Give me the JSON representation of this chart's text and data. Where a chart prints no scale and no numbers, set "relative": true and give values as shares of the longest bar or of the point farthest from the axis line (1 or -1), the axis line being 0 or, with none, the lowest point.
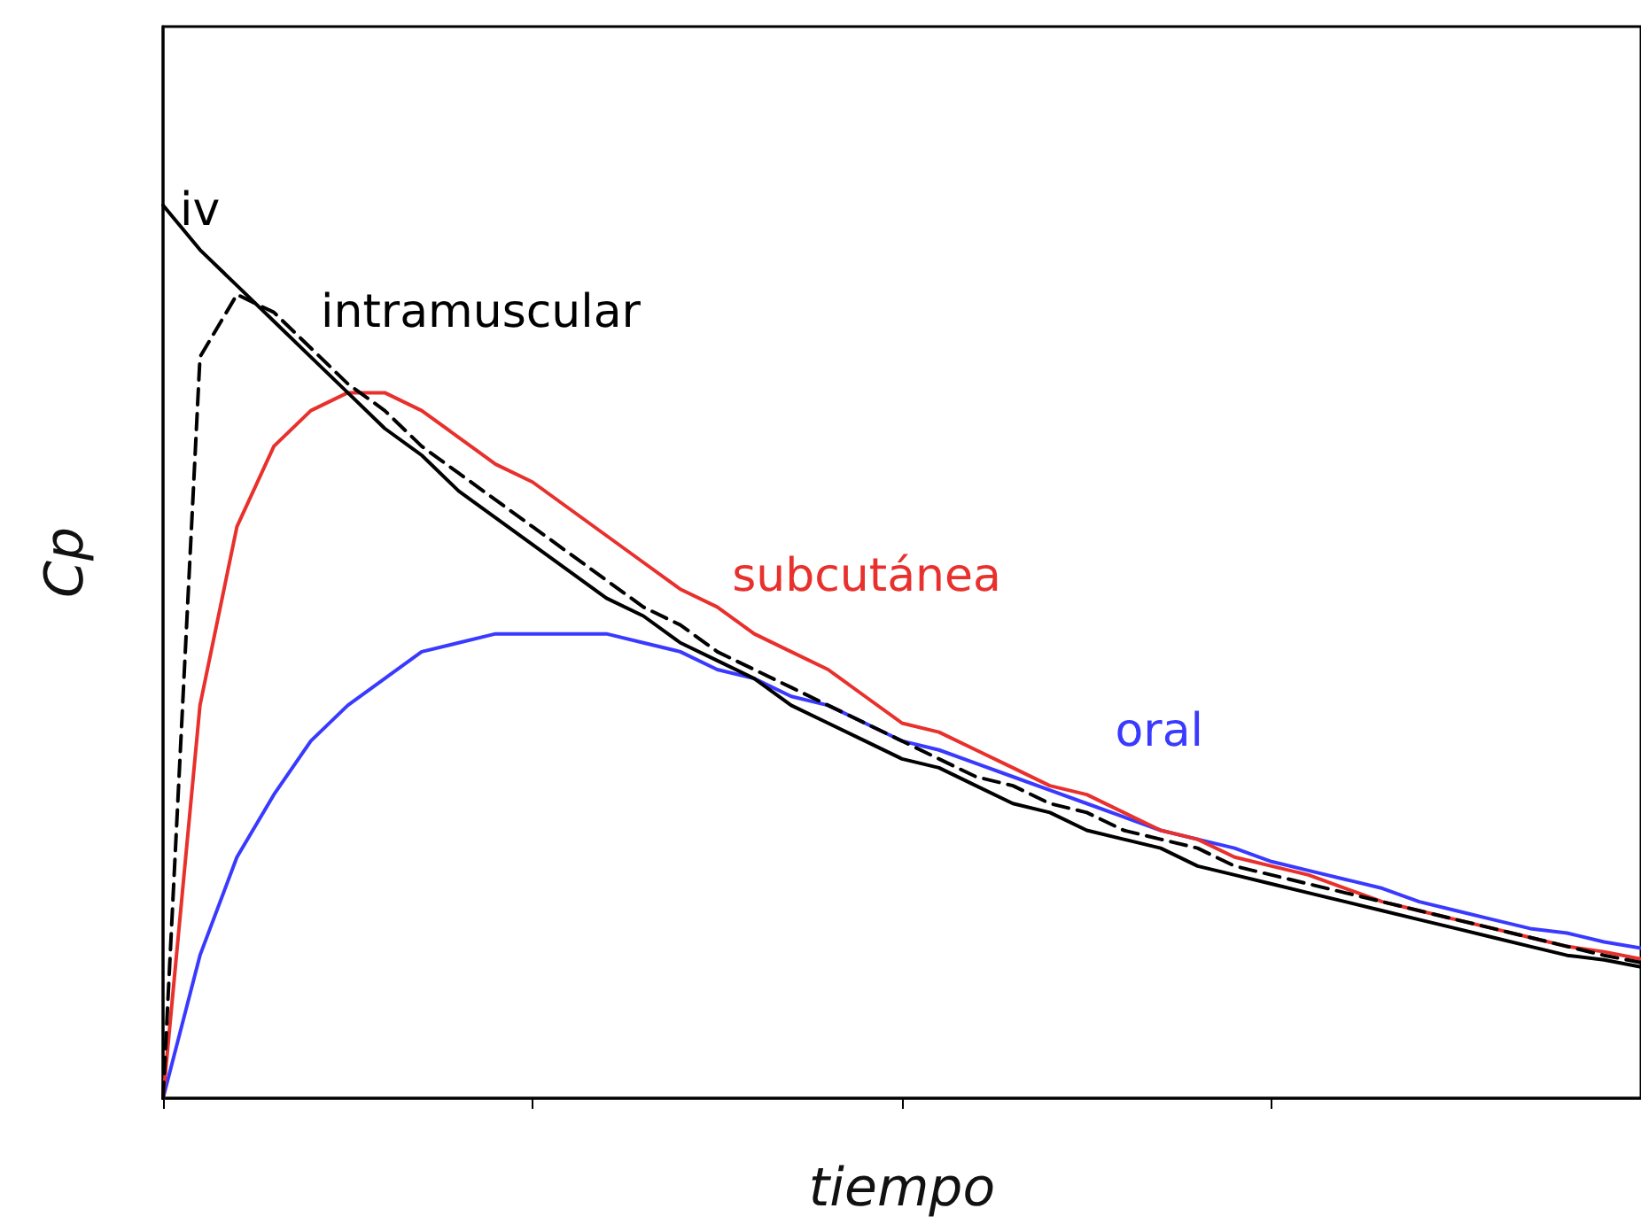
{
  "chart_data": {
    "type": "line",
    "relative": true,
    "xlabel": "tiempo",
    "ylabel": "Cp",
    "tick_labels": false,
    "grid": false,
    "legend": false,
    "marker": "none",
    "categories": [
      null,
      null,
      null,
      null,
      null,
      null,
      null,
      null,
      null,
      null,
      null,
      null,
      null,
      null,
      null,
      null,
      null,
      null,
      null,
      null,
      null,
      null,
      null,
      null,
      null,
      null,
      null,
      null,
      null,
      null,
      null,
      null,
      null,
      null,
      null,
      null,
      null,
      null,
      null,
      null,
      null
    ],
    "series": [
      {
        "name": "iv",
        "color": "#000000",
        "line_style": "solid",
        "values": [
          1.0,
          0.95,
          0.91,
          0.87,
          0.83,
          0.79,
          0.75,
          0.72,
          0.68,
          0.65,
          0.62,
          0.59,
          0.56,
          0.54,
          0.51,
          0.49,
          0.47,
          0.44,
          0.42,
          0.4,
          0.38,
          0.37,
          0.35,
          0.33,
          0.32,
          0.3,
          0.29,
          0.28,
          0.26,
          0.25,
          0.24,
          0.23,
          0.22,
          0.21,
          0.2,
          0.19,
          0.18,
          0.17,
          0.16,
          0.155,
          0.147
        ]
      },
      {
        "name": "intramuscular",
        "color": "#000000",
        "line_style": "dashed",
        "values": [
          0,
          0.83,
          0.9,
          0.88,
          0.84,
          0.8,
          0.77,
          0.73,
          0.7,
          0.67,
          0.64,
          0.61,
          0.58,
          0.55,
          0.53,
          0.5,
          0.48,
          0.46,
          0.44,
          0.42,
          0.4,
          0.38,
          0.36,
          0.35,
          0.33,
          0.32,
          0.3,
          0.29,
          0.28,
          0.26,
          0.25,
          0.24,
          0.23,
          0.22,
          0.21,
          0.2,
          0.19,
          0.18,
          0.17,
          0.16,
          0.152
        ]
      },
      {
        "name": "subcutánea",
        "color": "#e8302c",
        "line_style": "solid",
        "values": [
          0,
          0.44,
          0.64,
          0.73,
          0.77,
          0.79,
          0.79,
          0.77,
          0.74,
          0.71,
          0.69,
          0.66,
          0.63,
          0.6,
          0.57,
          0.55,
          0.52,
          0.5,
          0.48,
          0.45,
          0.42,
          0.41,
          0.39,
          0.37,
          0.35,
          0.34,
          0.32,
          0.3,
          0.29,
          0.27,
          0.26,
          0.25,
          0.235,
          0.22,
          0.21,
          0.2,
          0.19,
          0.18,
          0.17,
          0.164,
          0.156
        ]
      },
      {
        "name": "oral",
        "color": "#3a3aff",
        "line_style": "solid",
        "values": [
          0,
          0.16,
          0.27,
          0.34,
          0.4,
          0.44,
          0.47,
          0.5,
          0.51,
          0.52,
          0.52,
          0.52,
          0.52,
          0.51,
          0.5,
          0.48,
          0.47,
          0.45,
          0.44,
          0.42,
          0.4,
          0.39,
          0.375,
          0.36,
          0.345,
          0.33,
          0.315,
          0.3,
          0.29,
          0.28,
          0.265,
          0.255,
          0.245,
          0.235,
          0.22,
          0.21,
          0.2,
          0.19,
          0.185,
          0.175,
          0.168
        ]
      }
    ]
  }
}
